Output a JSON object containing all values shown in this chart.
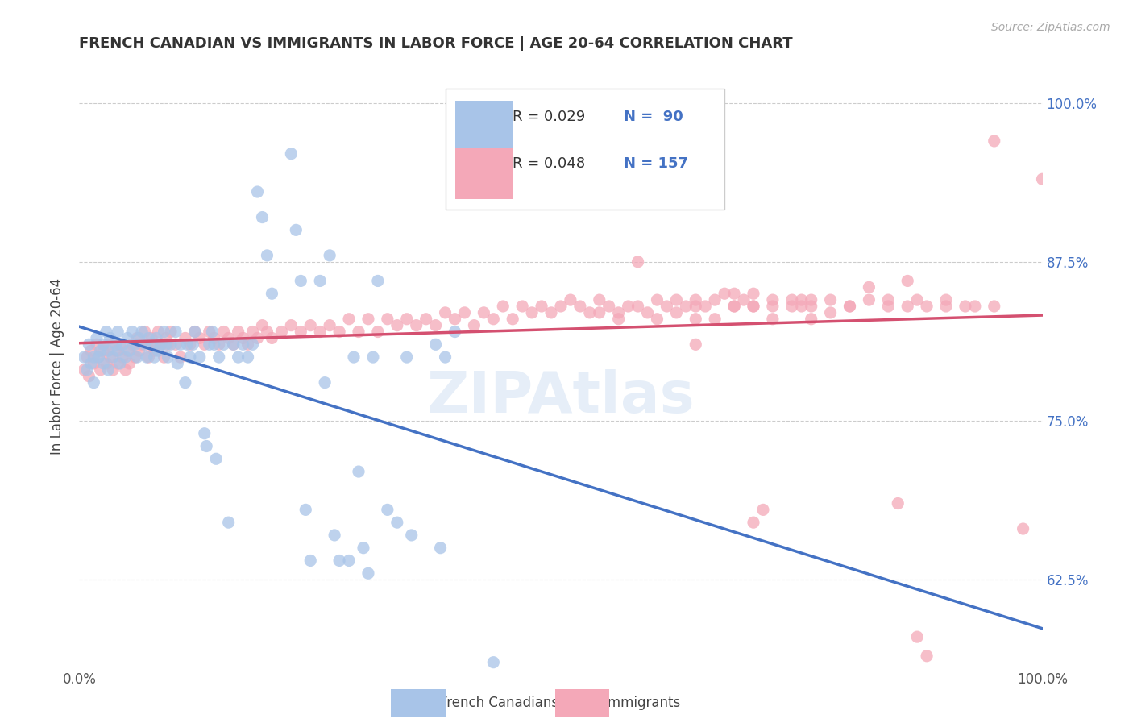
{
  "title": "FRENCH CANADIAN VS IMMIGRANTS IN LABOR FORCE | AGE 20-64 CORRELATION CHART",
  "source": "Source: ZipAtlas.com",
  "ylabel": "In Labor Force | Age 20-64",
  "xlim": [
    0.0,
    1.0
  ],
  "ylim": [
    0.555,
    1.03
  ],
  "yticks": [
    0.625,
    0.75,
    0.875,
    1.0
  ],
  "ytick_labels": [
    "62.5%",
    "75.0%",
    "87.5%",
    "100.0%"
  ],
  "xticks": [
    0.0,
    0.25,
    0.5,
    0.75,
    1.0
  ],
  "xtick_labels": [
    "0.0%",
    "",
    "",
    "",
    "100.0%"
  ],
  "blue_color": "#a8c4e8",
  "pink_color": "#f4a8b8",
  "blue_line_color": "#4472c4",
  "pink_line_color": "#d45070",
  "legend_text_color": "#4472c4",
  "watermark": "ZIPAtlas",
  "legend_r_blue": "R = 0.029",
  "legend_n_blue": "N =  90",
  "legend_r_pink": "R = 0.048",
  "legend_n_pink": "N = 157",
  "blue_scatter": [
    [
      0.005,
      0.8
    ],
    [
      0.008,
      0.79
    ],
    [
      0.01,
      0.81
    ],
    [
      0.012,
      0.795
    ],
    [
      0.015,
      0.78
    ],
    [
      0.015,
      0.8
    ],
    [
      0.018,
      0.815
    ],
    [
      0.02,
      0.8
    ],
    [
      0.022,
      0.805
    ],
    [
      0.025,
      0.81
    ],
    [
      0.025,
      0.795
    ],
    [
      0.028,
      0.82
    ],
    [
      0.03,
      0.805
    ],
    [
      0.03,
      0.79
    ],
    [
      0.032,
      0.815
    ],
    [
      0.035,
      0.8
    ],
    [
      0.038,
      0.81
    ],
    [
      0.04,
      0.805
    ],
    [
      0.04,
      0.82
    ],
    [
      0.042,
      0.795
    ],
    [
      0.045,
      0.81
    ],
    [
      0.048,
      0.8
    ],
    [
      0.05,
      0.815
    ],
    [
      0.052,
      0.805
    ],
    [
      0.055,
      0.82
    ],
    [
      0.058,
      0.81
    ],
    [
      0.06,
      0.8
    ],
    [
      0.062,
      0.815
    ],
    [
      0.065,
      0.82
    ],
    [
      0.068,
      0.81
    ],
    [
      0.07,
      0.8
    ],
    [
      0.072,
      0.815
    ],
    [
      0.075,
      0.81
    ],
    [
      0.078,
      0.8
    ],
    [
      0.08,
      0.815
    ],
    [
      0.082,
      0.805
    ],
    [
      0.085,
      0.81
    ],
    [
      0.088,
      0.82
    ],
    [
      0.09,
      0.81
    ],
    [
      0.092,
      0.8
    ],
    [
      0.095,
      0.81
    ],
    [
      0.1,
      0.82
    ],
    [
      0.102,
      0.795
    ],
    [
      0.105,
      0.81
    ],
    [
      0.11,
      0.78
    ],
    [
      0.112,
      0.81
    ],
    [
      0.115,
      0.8
    ],
    [
      0.118,
      0.81
    ],
    [
      0.12,
      0.82
    ],
    [
      0.125,
      0.8
    ],
    [
      0.13,
      0.74
    ],
    [
      0.132,
      0.73
    ],
    [
      0.135,
      0.81
    ],
    [
      0.138,
      0.82
    ],
    [
      0.14,
      0.81
    ],
    [
      0.142,
      0.72
    ],
    [
      0.145,
      0.8
    ],
    [
      0.15,
      0.81
    ],
    [
      0.155,
      0.67
    ],
    [
      0.16,
      0.81
    ],
    [
      0.165,
      0.8
    ],
    [
      0.17,
      0.81
    ],
    [
      0.175,
      0.8
    ],
    [
      0.18,
      0.81
    ],
    [
      0.185,
      0.93
    ],
    [
      0.19,
      0.91
    ],
    [
      0.195,
      0.88
    ],
    [
      0.2,
      0.85
    ],
    [
      0.22,
      0.96
    ],
    [
      0.225,
      0.9
    ],
    [
      0.23,
      0.86
    ],
    [
      0.235,
      0.68
    ],
    [
      0.24,
      0.64
    ],
    [
      0.25,
      0.86
    ],
    [
      0.255,
      0.78
    ],
    [
      0.26,
      0.88
    ],
    [
      0.265,
      0.66
    ],
    [
      0.27,
      0.64
    ],
    [
      0.28,
      0.64
    ],
    [
      0.285,
      0.8
    ],
    [
      0.29,
      0.71
    ],
    [
      0.295,
      0.65
    ],
    [
      0.3,
      0.63
    ],
    [
      0.305,
      0.8
    ],
    [
      0.31,
      0.86
    ],
    [
      0.32,
      0.68
    ],
    [
      0.33,
      0.67
    ],
    [
      0.34,
      0.8
    ],
    [
      0.345,
      0.66
    ],
    [
      0.37,
      0.81
    ],
    [
      0.375,
      0.65
    ],
    [
      0.38,
      0.8
    ],
    [
      0.39,
      0.82
    ],
    [
      0.43,
      0.56
    ]
  ],
  "pink_scatter": [
    [
      0.005,
      0.79
    ],
    [
      0.008,
      0.8
    ],
    [
      0.01,
      0.785
    ],
    [
      0.012,
      0.805
    ],
    [
      0.015,
      0.795
    ],
    [
      0.018,
      0.81
    ],
    [
      0.02,
      0.8
    ],
    [
      0.022,
      0.79
    ],
    [
      0.025,
      0.805
    ],
    [
      0.028,
      0.795
    ],
    [
      0.03,
      0.81
    ],
    [
      0.032,
      0.8
    ],
    [
      0.035,
      0.79
    ],
    [
      0.038,
      0.805
    ],
    [
      0.04,
      0.795
    ],
    [
      0.042,
      0.81
    ],
    [
      0.045,
      0.8
    ],
    [
      0.048,
      0.79
    ],
    [
      0.05,
      0.805
    ],
    [
      0.052,
      0.795
    ],
    [
      0.055,
      0.81
    ],
    [
      0.058,
      0.8
    ],
    [
      0.06,
      0.815
    ],
    [
      0.062,
      0.805
    ],
    [
      0.065,
      0.81
    ],
    [
      0.068,
      0.82
    ],
    [
      0.07,
      0.81
    ],
    [
      0.072,
      0.8
    ],
    [
      0.075,
      0.815
    ],
    [
      0.078,
      0.805
    ],
    [
      0.08,
      0.81
    ],
    [
      0.082,
      0.82
    ],
    [
      0.085,
      0.81
    ],
    [
      0.088,
      0.8
    ],
    [
      0.09,
      0.815
    ],
    [
      0.092,
      0.81
    ],
    [
      0.095,
      0.82
    ],
    [
      0.1,
      0.81
    ],
    [
      0.105,
      0.8
    ],
    [
      0.11,
      0.815
    ],
    [
      0.115,
      0.81
    ],
    [
      0.12,
      0.82
    ],
    [
      0.125,
      0.815
    ],
    [
      0.13,
      0.81
    ],
    [
      0.135,
      0.82
    ],
    [
      0.14,
      0.815
    ],
    [
      0.145,
      0.81
    ],
    [
      0.15,
      0.82
    ],
    [
      0.155,
      0.815
    ],
    [
      0.16,
      0.81
    ],
    [
      0.165,
      0.82
    ],
    [
      0.17,
      0.815
    ],
    [
      0.175,
      0.81
    ],
    [
      0.18,
      0.82
    ],
    [
      0.185,
      0.815
    ],
    [
      0.19,
      0.825
    ],
    [
      0.195,
      0.82
    ],
    [
      0.2,
      0.815
    ],
    [
      0.21,
      0.82
    ],
    [
      0.22,
      0.825
    ],
    [
      0.23,
      0.82
    ],
    [
      0.24,
      0.825
    ],
    [
      0.25,
      0.82
    ],
    [
      0.26,
      0.825
    ],
    [
      0.27,
      0.82
    ],
    [
      0.28,
      0.83
    ],
    [
      0.29,
      0.82
    ],
    [
      0.3,
      0.83
    ],
    [
      0.31,
      0.82
    ],
    [
      0.32,
      0.83
    ],
    [
      0.33,
      0.825
    ],
    [
      0.34,
      0.83
    ],
    [
      0.35,
      0.825
    ],
    [
      0.36,
      0.83
    ],
    [
      0.37,
      0.825
    ],
    [
      0.38,
      0.835
    ],
    [
      0.39,
      0.83
    ],
    [
      0.4,
      0.835
    ],
    [
      0.41,
      0.825
    ],
    [
      0.42,
      0.835
    ],
    [
      0.43,
      0.83
    ],
    [
      0.44,
      0.84
    ],
    [
      0.45,
      0.83
    ],
    [
      0.46,
      0.84
    ],
    [
      0.47,
      0.835
    ],
    [
      0.48,
      0.84
    ],
    [
      0.49,
      0.835
    ],
    [
      0.5,
      0.84
    ],
    [
      0.51,
      0.845
    ],
    [
      0.52,
      0.84
    ],
    [
      0.53,
      0.835
    ],
    [
      0.54,
      0.845
    ],
    [
      0.55,
      0.84
    ],
    [
      0.56,
      0.835
    ],
    [
      0.57,
      0.84
    ],
    [
      0.58,
      0.875
    ],
    [
      0.59,
      0.835
    ],
    [
      0.6,
      0.845
    ],
    [
      0.61,
      0.84
    ],
    [
      0.62,
      0.845
    ],
    [
      0.63,
      0.84
    ],
    [
      0.64,
      0.845
    ],
    [
      0.65,
      0.84
    ],
    [
      0.66,
      0.845
    ],
    [
      0.67,
      0.85
    ],
    [
      0.68,
      0.85
    ],
    [
      0.69,
      0.845
    ],
    [
      0.7,
      0.85
    ],
    [
      0.64,
      0.83
    ],
    [
      0.68,
      0.84
    ],
    [
      0.72,
      0.845
    ],
    [
      0.74,
      0.84
    ],
    [
      0.64,
      0.81
    ],
    [
      0.7,
      0.67
    ],
    [
      0.71,
      0.68
    ],
    [
      0.75,
      0.845
    ],
    [
      0.76,
      0.84
    ],
    [
      0.78,
      0.845
    ],
    [
      0.8,
      0.84
    ],
    [
      0.82,
      0.845
    ],
    [
      0.84,
      0.84
    ],
    [
      0.7,
      0.84
    ],
    [
      0.72,
      0.83
    ],
    [
      0.76,
      0.845
    ],
    [
      0.86,
      0.84
    ],
    [
      0.87,
      0.845
    ],
    [
      0.88,
      0.84
    ],
    [
      0.85,
      0.685
    ],
    [
      0.9,
      0.845
    ],
    [
      0.92,
      0.84
    ],
    [
      0.93,
      0.84
    ],
    [
      0.87,
      0.58
    ],
    [
      0.88,
      0.565
    ],
    [
      0.95,
      0.97
    ],
    [
      0.98,
      0.665
    ],
    [
      1.0,
      0.94
    ],
    [
      0.82,
      0.855
    ],
    [
      0.84,
      0.845
    ],
    [
      0.86,
      0.86
    ],
    [
      0.9,
      0.84
    ],
    [
      0.95,
      0.84
    ],
    [
      0.78,
      0.835
    ],
    [
      0.8,
      0.84
    ],
    [
      0.76,
      0.83
    ],
    [
      0.75,
      0.84
    ],
    [
      0.72,
      0.84
    ],
    [
      0.74,
      0.845
    ],
    [
      0.7,
      0.84
    ],
    [
      0.68,
      0.84
    ],
    [
      0.66,
      0.83
    ],
    [
      0.64,
      0.84
    ],
    [
      0.62,
      0.835
    ],
    [
      0.6,
      0.83
    ],
    [
      0.58,
      0.84
    ],
    [
      0.56,
      0.83
    ],
    [
      0.54,
      0.835
    ]
  ]
}
